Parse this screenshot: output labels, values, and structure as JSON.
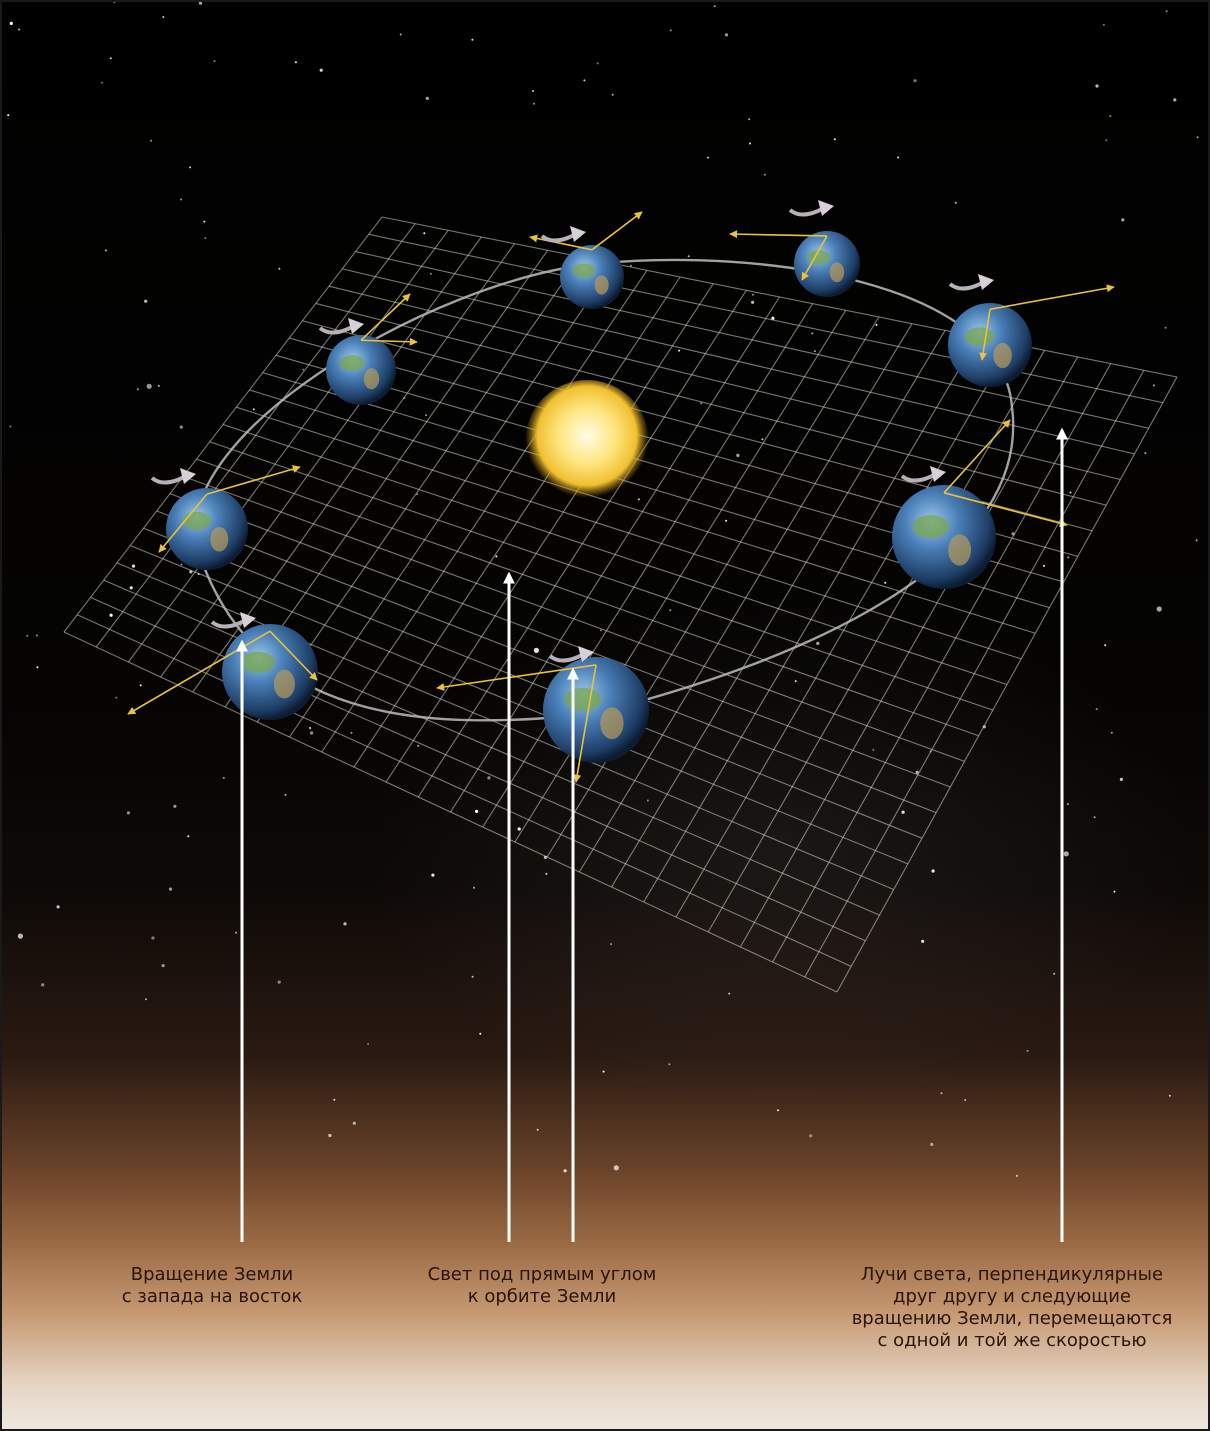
{
  "captions": {
    "left": "Вращение Земли\nс запада на восток",
    "center": "Свет под прямым углом\nк орбите Земли",
    "right": "Лучи света, перпендикулярные\nдруг другу и следующие\nвращению Земли, перемещаются\nс одной и той же скоростью"
  },
  "colors": {
    "background": "#000000",
    "ray_arrow": "#e8c23a",
    "rotation_arrow": "#b8b0b8",
    "pointer_line": "#ffffff",
    "grid": "#d8d8c8",
    "sun": "#ffe070",
    "earth_ocean": "#3a6fb0",
    "earth_land": "#7aa64e"
  },
  "icons": {
    "sun": "sun-icon",
    "earth": "earth-globe-icon",
    "rotation": "curved-rotation-arrow-icon",
    "ray": "light-ray-arrow-icon"
  }
}
